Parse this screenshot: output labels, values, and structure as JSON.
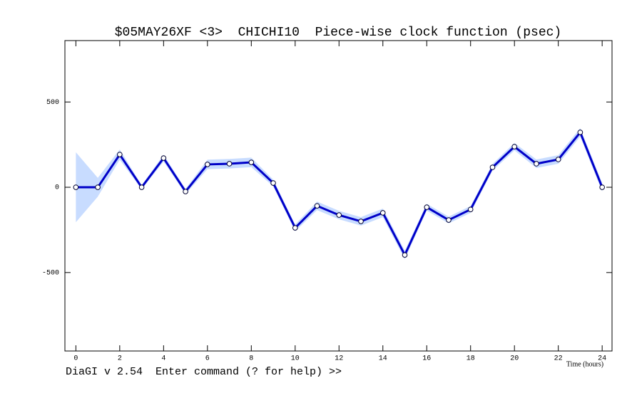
{
  "chart_data": {
    "type": "line",
    "title": "$05MAY26XF <3>  CHICHI10  Piece-wise clock function (psec)",
    "xlabel": "Time (hours)",
    "status": "DiaGI v 2.54  Enter command (? for help) >>",
    "x": [
      0,
      1,
      2,
      3,
      4,
      5,
      6,
      7,
      8,
      9,
      10,
      11,
      12,
      13,
      14,
      15,
      16,
      17,
      18,
      19,
      20,
      21,
      22,
      23,
      24
    ],
    "series": [
      {
        "color": "#0000c8",
        "band_color": "#c8dcff",
        "values": [
          0,
          0,
          192,
          0,
          171,
          -25,
          134,
          138,
          146,
          25,
          -238,
          -109,
          -163,
          -200,
          -150,
          -397,
          -117,
          -192,
          -130,
          117,
          238,
          138,
          163,
          322,
          0
        ],
        "errors": [
          205,
          55,
          30,
          12,
          20,
          15,
          28,
          28,
          28,
          20,
          20,
          25,
          25,
          25,
          25,
          25,
          20,
          20,
          20,
          20,
          22,
          25,
          25,
          25,
          25
        ]
      }
    ],
    "xlim": [
      -0.5,
      24.45
    ],
    "ylim": [
      -960,
      860
    ],
    "xticks": [
      0,
      2,
      4,
      6,
      8,
      10,
      12,
      14,
      16,
      18,
      20,
      22,
      24
    ],
    "yticks": [
      -500,
      0,
      500
    ]
  }
}
